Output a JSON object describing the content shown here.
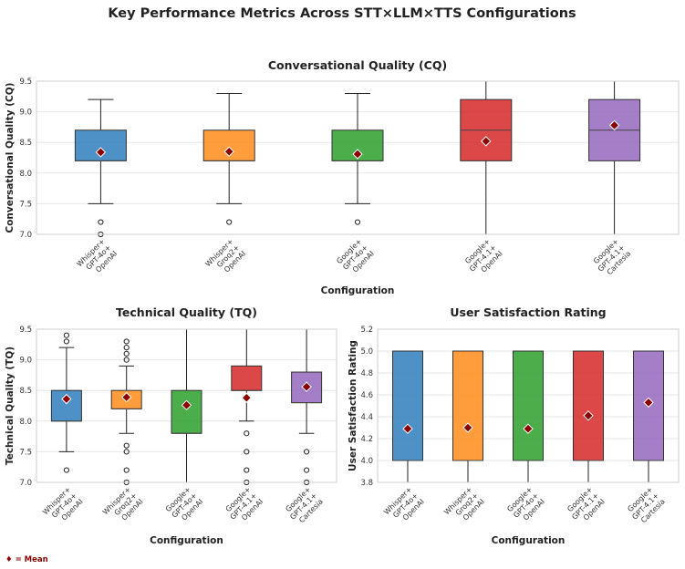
{
  "figure": {
    "title": "Key Performance Metrics Across STT×LLM×TTS Configurations",
    "legend_note": "♦ = Mean"
  },
  "chart_data": [
    {
      "id": "cq",
      "type": "box",
      "title": "Conversational Quality (CQ)",
      "xlabel": "Configuration",
      "ylabel": "Conversational Quality (CQ)",
      "ylim": [
        7.0,
        9.5
      ],
      "yticks": [
        "7.0",
        "7.5",
        "8.0",
        "8.5",
        "9.0",
        "9.5"
      ],
      "grid": true,
      "categories": [
        [
          "Whisper+",
          "GPT-4o+",
          "OpenAI"
        ],
        [
          "Whisper+",
          "Groq2+",
          "OpenAI"
        ],
        [
          "Google+",
          "GPT-4o+",
          "OpenAI"
        ],
        [
          "Google+",
          "GPT-4.1+",
          "OpenAI"
        ],
        [
          "Google+",
          "GPT-4.1+",
          "Cartesia"
        ]
      ],
      "series": [
        {
          "color": "#2e7ebc",
          "whislo": 7.5,
          "q1": 8.2,
          "median": 8.2,
          "q3": 8.7,
          "whishi": 9.2,
          "mean": 8.34,
          "fliers": [
            7.2,
            7.0
          ]
        },
        {
          "color": "#ff8c1a",
          "whislo": 7.5,
          "q1": 8.2,
          "median": 8.2,
          "q3": 8.7,
          "whishi": 9.3,
          "mean": 8.35,
          "fliers": [
            7.2
          ]
        },
        {
          "color": "#2ca02c",
          "whislo": 7.5,
          "q1": 8.2,
          "median": 8.2,
          "q3": 8.7,
          "whishi": 9.3,
          "mean": 8.31,
          "fliers": [
            7.2
          ]
        },
        {
          "color": "#d62728",
          "whislo": 7.0,
          "q1": 8.2,
          "median": 8.7,
          "q3": 9.2,
          "whishi": 9.5,
          "mean": 8.52,
          "fliers": []
        },
        {
          "color": "#9467bd",
          "whislo": 7.0,
          "q1": 8.2,
          "median": 8.7,
          "q3": 9.2,
          "whishi": 9.5,
          "mean": 8.78,
          "fliers": []
        }
      ]
    },
    {
      "id": "tq",
      "type": "box",
      "title": "Technical Quality (TQ)",
      "xlabel": "Configuration",
      "ylabel": "Technical Quality (TQ)",
      "ylim": [
        7.0,
        9.5
      ],
      "yticks": [
        "7.0",
        "7.5",
        "8.0",
        "8.5",
        "9.0",
        "9.5"
      ],
      "grid": true,
      "categories": [
        [
          "Whisper+",
          "GPT-4o+",
          "OpenAI"
        ],
        [
          "Whisper+",
          "Groq2+",
          "OpenAI"
        ],
        [
          "Google+",
          "GPT-4o+",
          "OpenAI"
        ],
        [
          "Google+",
          "GPT-4.1+",
          "OpenAI"
        ],
        [
          "Google+",
          "GPT-4.1+",
          "Cartesia"
        ]
      ],
      "series": [
        {
          "color": "#2e7ebc",
          "whislo": 7.5,
          "q1": 8.0,
          "median": 8.0,
          "q3": 8.5,
          "whishi": 9.2,
          "mean": 8.36,
          "fliers": [
            9.4,
            9.3,
            7.2
          ]
        },
        {
          "color": "#ff8c1a",
          "whislo": 7.8,
          "q1": 8.2,
          "median": 8.2,
          "q3": 8.5,
          "whishi": 8.9,
          "mean": 8.39,
          "fliers": [
            9.3,
            9.2,
            9.1,
            9.0,
            7.6,
            7.5,
            7.2,
            7.0
          ]
        },
        {
          "color": "#2ca02c",
          "whislo": 7.0,
          "q1": 7.8,
          "median": 7.8,
          "q3": 8.5,
          "whishi": 9.5,
          "mean": 8.26,
          "fliers": []
        },
        {
          "color": "#d62728",
          "whislo": 8.0,
          "q1": 8.5,
          "median": 8.5,
          "q3": 8.9,
          "whishi": 9.5,
          "mean": 8.38,
          "fliers": [
            7.8,
            7.5,
            7.2,
            7.0
          ]
        },
        {
          "color": "#9467bd",
          "whislo": 7.8,
          "q1": 8.3,
          "median": 8.3,
          "q3": 8.8,
          "whishi": 9.5,
          "mean": 8.56,
          "fliers": [
            7.5,
            7.2,
            7.0
          ]
        }
      ]
    },
    {
      "id": "us",
      "type": "box",
      "title": "User Satisfaction Rating",
      "xlabel": "Configuration",
      "ylabel": "User Satisfaction Rating",
      "ylim": [
        3.8,
        5.2
      ],
      "yticks": [
        "3.8",
        "4.0",
        "4.2",
        "4.4",
        "4.6",
        "4.8",
        "5.0",
        "5.2"
      ],
      "grid": true,
      "categories": [
        [
          "Whisper+",
          "GPT-4o+",
          "OpenAI"
        ],
        [
          "Whisper+",
          "Groq2+",
          "OpenAI"
        ],
        [
          "Google+",
          "GPT-4o+",
          "OpenAI"
        ],
        [
          "Google+",
          "GPT-4.1+",
          "OpenAI"
        ],
        [
          "Google+",
          "GPT-4.1+",
          "Cartesia"
        ]
      ],
      "series": [
        {
          "color": "#2e7ebc",
          "whislo": 3.8,
          "q1": 4.0,
          "median": 4.0,
          "q3": 5.0,
          "whishi": 5.0,
          "mean": 4.29,
          "fliers": []
        },
        {
          "color": "#ff8c1a",
          "whislo": 3.8,
          "q1": 4.0,
          "median": 4.0,
          "q3": 5.0,
          "whishi": 5.0,
          "mean": 4.3,
          "fliers": []
        },
        {
          "color": "#2ca02c",
          "whislo": 3.8,
          "q1": 4.0,
          "median": 4.0,
          "q3": 5.0,
          "whishi": 5.0,
          "mean": 4.29,
          "fliers": []
        },
        {
          "color": "#d62728",
          "whislo": 3.8,
          "q1": 4.0,
          "median": 4.0,
          "q3": 5.0,
          "whishi": 5.0,
          "mean": 4.41,
          "fliers": []
        },
        {
          "color": "#9467bd",
          "whislo": 3.8,
          "q1": 4.0,
          "median": 4.0,
          "q3": 5.0,
          "whishi": 5.0,
          "mean": 4.53,
          "fliers": []
        }
      ]
    }
  ]
}
